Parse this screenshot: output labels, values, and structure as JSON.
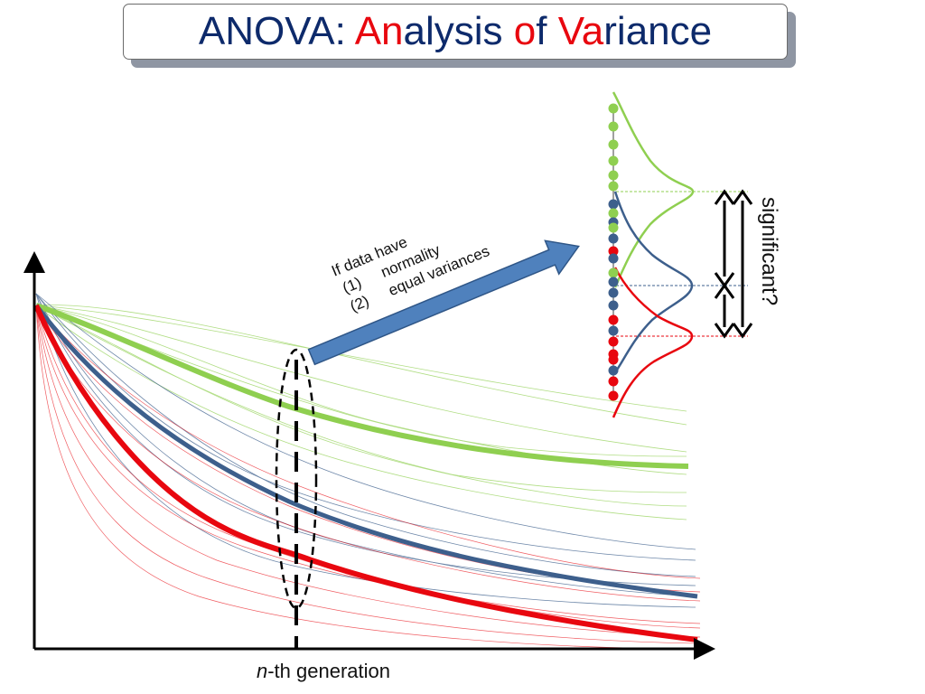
{
  "title": {
    "parts": [
      {
        "text": "ANOVA: ",
        "color": "#0d2a6b"
      },
      {
        "text": "An",
        "color": "#e8070f"
      },
      {
        "text": "alysis ",
        "color": "#0d2a6b"
      },
      {
        "text": "o",
        "color": "#e8070f"
      },
      {
        "text": "f ",
        "color": "#0d2a6b"
      },
      {
        "text": "Va",
        "color": "#e8070f"
      },
      {
        "text": "riance",
        "color": "#0d2a6b"
      }
    ]
  },
  "condition_note": {
    "line1": "If data have",
    "item1_num": "(1)",
    "item1_text": "normality",
    "item2_num": "(2)",
    "item2_text": "equal variances"
  },
  "x_axis_label": {
    "italic": "n",
    "rest": "-th generation"
  },
  "question_label": "significant?",
  "colors": {
    "green": "#8fcf50",
    "blue": "#3d5f8c",
    "red": "#e8070f",
    "arrow_fill": "#4f81bd",
    "title_text": "#0d2a6b"
  },
  "icons": [
    "right-arrow-icon",
    "double-headed-arrow-icon"
  ]
}
